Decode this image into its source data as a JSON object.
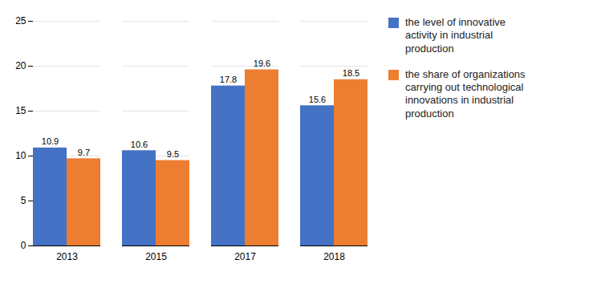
{
  "chart_data": {
    "type": "bar",
    "categories": [
      "2013",
      "2015",
      "2017",
      "2018"
    ],
    "series": [
      {
        "name": "the level of innovative\nactivity in industrial\nproduction",
        "color": "#4472C4",
        "values": [
          10.9,
          10.6,
          17.8,
          15.6
        ]
      },
      {
        "name": "the share of organizations\ncarrying out technological\ninnovations in industrial\nproduction",
        "color": "#ED7D31",
        "values": [
          9.7,
          9.5,
          19.6,
          18.5
        ]
      }
    ],
    "ylim": [
      0,
      25
    ],
    "yticks": [
      0,
      5,
      10,
      15,
      20,
      25
    ],
    "grid": true,
    "data_labels": true,
    "legend": "right"
  }
}
